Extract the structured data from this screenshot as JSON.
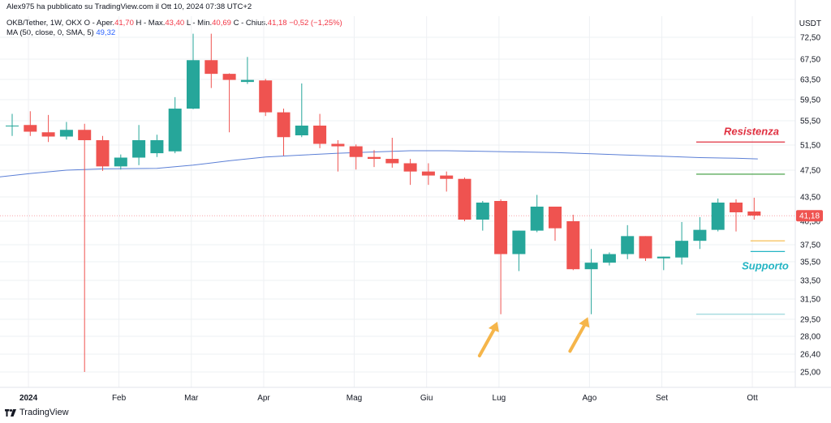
{
  "header": {
    "publisher": "Alex975 ha pubblicato su TradingView.com il Ott 10, 2024 07:38 UTC+2",
    "symbol": "OKB/Tether, 1W, OKX",
    "open_label": "O - Aper.",
    "open": "41,70",
    "high_label": "H - Max.",
    "high": "43,40",
    "low_label": "L - Min.",
    "low": "40,69",
    "close_label": "C - Chius.",
    "close": "41,18",
    "change": "−0,52 (−1,25%)",
    "ma_label": "MA (50, close, 0, SMA, 5)",
    "ma_value": "49,32"
  },
  "footer": {
    "brand": "TradingView"
  },
  "chart_data": {
    "type": "candlestick",
    "currency": "USDT",
    "y_ticks": [
      "72,50",
      "67,50",
      "63,50",
      "59,50",
      "55,50",
      "51,50",
      "47,50",
      "43,50",
      "40,50",
      "37,50",
      "35,50",
      "33,50",
      "31,50",
      "29,50",
      "28,00",
      "26,40",
      "25,00"
    ],
    "y_tick_values": [
      72.5,
      67.5,
      63.5,
      59.5,
      55.5,
      51.5,
      47.5,
      43.5,
      40.5,
      37.5,
      35.5,
      33.5,
      31.5,
      29.5,
      28.0,
      26.4,
      25.0
    ],
    "x_labels": [
      {
        "text": "2024",
        "index": 0.9,
        "bold": true
      },
      {
        "text": "Feb",
        "index": 5.9
      },
      {
        "text": "Mar",
        "index": 9.9
      },
      {
        "text": "Apr",
        "index": 13.9
      },
      {
        "text": "Mag",
        "index": 18.9
      },
      {
        "text": "Giu",
        "index": 22.9
      },
      {
        "text": "Lug",
        "index": 26.9
      },
      {
        "text": "Ago",
        "index": 31.9
      },
      {
        "text": "Set",
        "index": 35.9
      },
      {
        "text": "Ott",
        "index": 40.9
      }
    ],
    "last_price": 41.18,
    "last_price_label": "41,18",
    "candles": [
      {
        "o": 54.7,
        "h": 56.8,
        "l": 53.0,
        "c": 54.7
      },
      {
        "o": 54.8,
        "h": 57.3,
        "l": 53.0,
        "c": 53.7
      },
      {
        "o": 53.6,
        "h": 56.6,
        "l": 52.0,
        "c": 52.9
      },
      {
        "o": 52.9,
        "h": 55.3,
        "l": 52.4,
        "c": 54.0
      },
      {
        "o": 54.0,
        "h": 55.0,
        "l": 25.0,
        "c": 52.3
      },
      {
        "o": 52.3,
        "h": 53.0,
        "l": 47.4,
        "c": 48.1
      },
      {
        "o": 48.1,
        "h": 50.0,
        "l": 47.6,
        "c": 49.5
      },
      {
        "o": 49.5,
        "h": 54.8,
        "l": 48.3,
        "c": 52.3
      },
      {
        "o": 50.2,
        "h": 53.2,
        "l": 49.6,
        "c": 52.3
      },
      {
        "o": 50.5,
        "h": 60.0,
        "l": 50.2,
        "c": 57.8
      },
      {
        "o": 57.8,
        "h": 73.0,
        "l": 57.7,
        "c": 67.3
      },
      {
        "o": 67.3,
        "h": 73.0,
        "l": 61.8,
        "c": 64.6
      },
      {
        "o": 64.6,
        "h": 64.7,
        "l": 53.6,
        "c": 63.4
      },
      {
        "o": 63.0,
        "h": 68.0,
        "l": 62.6,
        "c": 63.4
      },
      {
        "o": 63.3,
        "h": 63.6,
        "l": 56.4,
        "c": 57.1
      },
      {
        "o": 57.1,
        "h": 57.8,
        "l": 49.8,
        "c": 52.8
      },
      {
        "o": 53.1,
        "h": 62.7,
        "l": 52.8,
        "c": 54.7
      },
      {
        "o": 54.7,
        "h": 56.8,
        "l": 51.0,
        "c": 51.7
      },
      {
        "o": 51.7,
        "h": 52.3,
        "l": 47.3,
        "c": 51.3
      },
      {
        "o": 51.3,
        "h": 51.6,
        "l": 47.6,
        "c": 49.6
      },
      {
        "o": 49.6,
        "h": 50.7,
        "l": 48.0,
        "c": 49.3
      },
      {
        "o": 49.3,
        "h": 52.7,
        "l": 47.9,
        "c": 48.6
      },
      {
        "o": 48.6,
        "h": 49.3,
        "l": 45.3,
        "c": 47.3
      },
      {
        "o": 47.3,
        "h": 48.6,
        "l": 45.3,
        "c": 46.7
      },
      {
        "o": 46.7,
        "h": 47.3,
        "l": 44.3,
        "c": 46.2
      },
      {
        "o": 46.2,
        "h": 46.4,
        "l": 40.5,
        "c": 40.7
      },
      {
        "o": 40.7,
        "h": 43.0,
        "l": 39.3,
        "c": 42.8
      },
      {
        "o": 43.0,
        "h": 43.2,
        "l": 30.0,
        "c": 36.4
      },
      {
        "o": 36.4,
        "h": 39.3,
        "l": 34.5,
        "c": 39.3
      },
      {
        "o": 39.3,
        "h": 43.8,
        "l": 39.1,
        "c": 42.3
      },
      {
        "o": 42.3,
        "h": 42.3,
        "l": 38.0,
        "c": 39.6
      },
      {
        "o": 40.5,
        "h": 41.3,
        "l": 34.6,
        "c": 34.7
      },
      {
        "o": 34.7,
        "h": 37.0,
        "l": 30.0,
        "c": 35.4
      },
      {
        "o": 35.4,
        "h": 36.6,
        "l": 35.1,
        "c": 36.4
      },
      {
        "o": 36.4,
        "h": 40.0,
        "l": 35.8,
        "c": 38.6
      },
      {
        "o": 38.6,
        "h": 38.6,
        "l": 35.6,
        "c": 35.9
      },
      {
        "o": 35.9,
        "h": 36.1,
        "l": 34.6,
        "c": 36.1
      },
      {
        "o": 36.0,
        "h": 40.4,
        "l": 35.2,
        "c": 38.0
      },
      {
        "o": 38.0,
        "h": 41.0,
        "l": 37.0,
        "c": 39.4
      },
      {
        "o": 39.4,
        "h": 43.3,
        "l": 39.2,
        "c": 42.8
      },
      {
        "o": 42.8,
        "h": 43.2,
        "l": 39.2,
        "c": 41.6
      },
      {
        "o": 41.7,
        "h": 43.4,
        "l": 40.7,
        "c": 41.2
      }
    ],
    "ma_series": [
      {
        "i": -1,
        "v": 46.4
      },
      {
        "i": 1,
        "v": 47.0
      },
      {
        "i": 3,
        "v": 47.5
      },
      {
        "i": 5,
        "v": 47.7
      },
      {
        "i": 8,
        "v": 47.8
      },
      {
        "i": 10,
        "v": 48.3
      },
      {
        "i": 12,
        "v": 49.0
      },
      {
        "i": 14,
        "v": 49.6
      },
      {
        "i": 16,
        "v": 49.9
      },
      {
        "i": 18,
        "v": 50.2
      },
      {
        "i": 20,
        "v": 50.4
      },
      {
        "i": 22,
        "v": 50.6
      },
      {
        "i": 24,
        "v": 50.6
      },
      {
        "i": 26,
        "v": 50.5
      },
      {
        "i": 28,
        "v": 50.4
      },
      {
        "i": 30,
        "v": 50.3
      },
      {
        "i": 32,
        "v": 50.1
      },
      {
        "i": 34,
        "v": 49.9
      },
      {
        "i": 36,
        "v": 49.7
      },
      {
        "i": 38,
        "v": 49.5
      },
      {
        "i": 40,
        "v": 49.4
      },
      {
        "i": 41.2,
        "v": 49.3
      }
    ],
    "levels": [
      {
        "value": 52.0,
        "from": 37.8,
        "to": 42.7,
        "color": "#e03040",
        "label": "Resistenza"
      },
      {
        "value": 46.9,
        "from": 37.8,
        "to": 42.7,
        "color": "#3a9a3a"
      },
      {
        "value": 38.0,
        "from": 40.8,
        "to": 42.7,
        "color": "#f5b942"
      },
      {
        "value": 36.7,
        "from": 40.8,
        "to": 42.7,
        "color": "#25b5c4",
        "label": "Supporto"
      },
      {
        "value": 30.0,
        "from": 37.8,
        "to": 42.7,
        "color": "#9ad7dc"
      }
    ],
    "arrows": [
      {
        "index": 26.9,
        "value": 28.0
      },
      {
        "index": 31.9,
        "value": 28.4
      }
    ],
    "colors": {
      "up": "#26a69a",
      "down": "#ef5350",
      "ma": "#5b7fd6",
      "grid": "#eef0f3",
      "price_line": "#f7a3a8"
    }
  }
}
